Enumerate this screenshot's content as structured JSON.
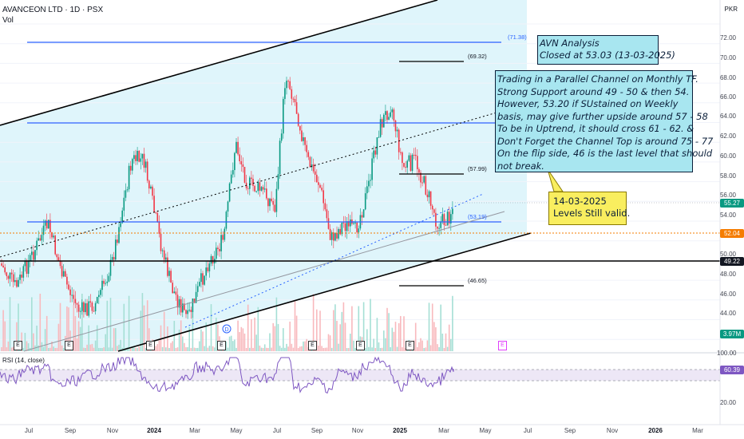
{
  "header": {
    "symbol": "AVANCEON LTD · 1D · PSX",
    "vol_label": "Vol",
    "currency": "PKR"
  },
  "notes": {
    "title_box": "AVN Analysis\nClosed at 53.03 (13-03-2025)",
    "analysis_box": "Trading in a Parallel Channel on Monthly TF.\nStrong Support around 49 - 50 & then 54.\nHowever, 53.20 if SUstained on Weekly\nbasis, may give further upside around 57 - 58\nTo be in Uptrend, it should cross 61 - 62. &\nDon't Forget the Channel Top is around 75 - 77\nOn the flip side, 46 is the last level that should\nnot break.",
    "callout_box": "14-03-2025\nLevels Still valid."
  },
  "price_axis": [
    "72.00",
    "70.00",
    "68.00",
    "66.00",
    "64.00",
    "62.00",
    "60.00",
    "58.00",
    "56.00",
    "54.00",
    "50.00",
    "48.00",
    "46.00",
    "44.00"
  ],
  "price_badges": [
    {
      "text": "55.27",
      "color": "#089981"
    },
    {
      "text": "52.04",
      "color": "#f57c00"
    },
    {
      "text": "49.22",
      "color": "#131722"
    },
    {
      "text": "3.97M",
      "color": "#089981"
    }
  ],
  "rsi_axis": [
    "100.00",
    "20.00"
  ],
  "rsi": {
    "label": "RSI (14, close)",
    "value": "60.39",
    "value_color": "#7e57c2"
  },
  "time_axis": [
    "Jul",
    "Sep",
    "Nov",
    "2024",
    "Mar",
    "May",
    "Jul",
    "Sep",
    "Nov",
    "2025",
    "Mar",
    "May",
    "Jul",
    "Sep",
    "Nov",
    "2026",
    "Mar"
  ],
  "levels": [
    "(71.38)",
    "(69.32)",
    "(57.99)",
    "(53.19)",
    "(46.65)"
  ],
  "events": [
    "E",
    "E",
    "E",
    "E",
    "E",
    "E",
    "E",
    "E",
    "D"
  ],
  "colors": {
    "up": "#089981",
    "down": "#f23645",
    "channel_fill": "#d9f4fb",
    "blue_line": "#2962ff",
    "rsi": "#7e57c2"
  }
}
